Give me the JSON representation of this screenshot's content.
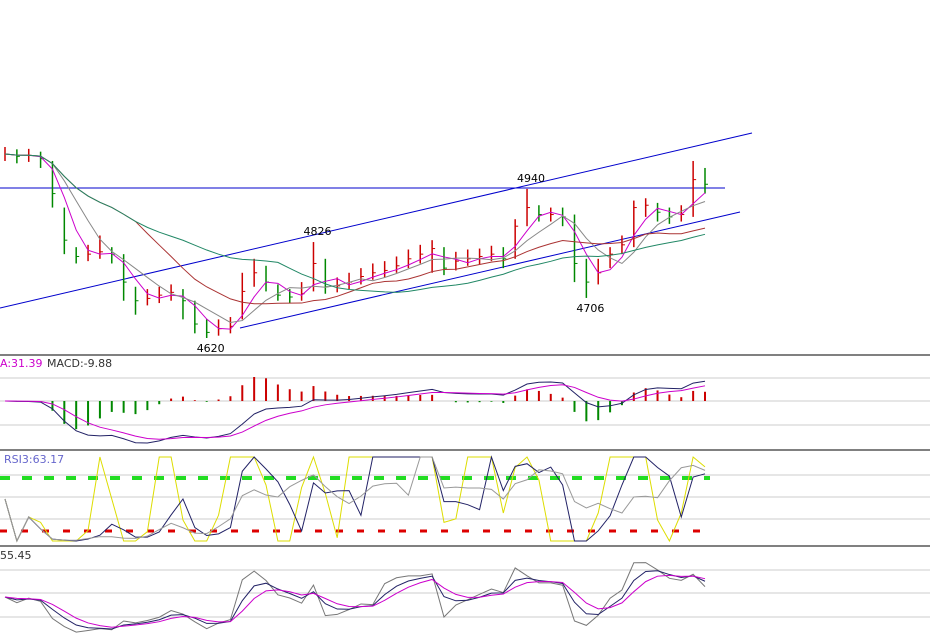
{
  "main": {
    "close": [
      5015,
      5010,
      5012,
      5005,
      4930,
      4830,
      4795,
      4800,
      4805,
      4800,
      4740,
      4700,
      4705,
      4712,
      4718,
      4700,
      4650,
      4632,
      4640,
      4645,
      4720,
      4760,
      4740,
      4712,
      4708,
      4715,
      4780,
      4730,
      4732,
      4740,
      4752,
      4760,
      4765,
      4775,
      4790,
      4800,
      4812,
      4770,
      4785,
      4790,
      4795,
      4800,
      4790,
      4860,
      4900,
      4885,
      4885,
      4880,
      4780,
      4740,
      4760,
      4800,
      4820,
      4900,
      4905,
      4890,
      4880,
      4885,
      4960,
      4950
    ],
    "high": [
      5030,
      5025,
      5026,
      5020,
      5000,
      4900,
      4815,
      4820,
      4840,
      4815,
      4800,
      4730,
      4725,
      4730,
      4735,
      4725,
      4700,
      4660,
      4660,
      4665,
      4760,
      4790,
      4775,
      4735,
      4725,
      4740,
      4826,
      4790,
      4750,
      4760,
      4770,
      4780,
      4785,
      4795,
      4810,
      4820,
      4830,
      4815,
      4805,
      4810,
      4812,
      4818,
      4815,
      4875,
      4940,
      4905,
      4900,
      4900,
      4885,
      4790,
      4790,
      4815,
      4840,
      4915,
      4920,
      4910,
      4900,
      4905,
      5000,
      4985
    ],
    "low": [
      5000,
      4995,
      4998,
      4985,
      4900,
      4800,
      4780,
      4785,
      4790,
      4780,
      4700,
      4670,
      4690,
      4695,
      4700,
      4660,
      4630,
      4620,
      4625,
      4630,
      4660,
      4730,
      4720,
      4700,
      4695,
      4700,
      4720,
      4715,
      4718,
      4725,
      4735,
      4745,
      4750,
      4760,
      4770,
      4780,
      4760,
      4755,
      4765,
      4775,
      4778,
      4785,
      4770,
      4790,
      4860,
      4870,
      4870,
      4860,
      4740,
      4706,
      4735,
      4770,
      4800,
      4815,
      4880,
      4870,
      4865,
      4870,
      4880,
      4930
    ],
    "annotations": [
      4940,
      4826,
      4706,
      4620
    ]
  },
  "macd": {
    "labels": [
      "A:31.39",
      "MACD:-9.88"
    ]
  },
  "rsi": {
    "label": "RSI3:63.17"
  },
  "kdj": {
    "label": "55.45"
  }
}
